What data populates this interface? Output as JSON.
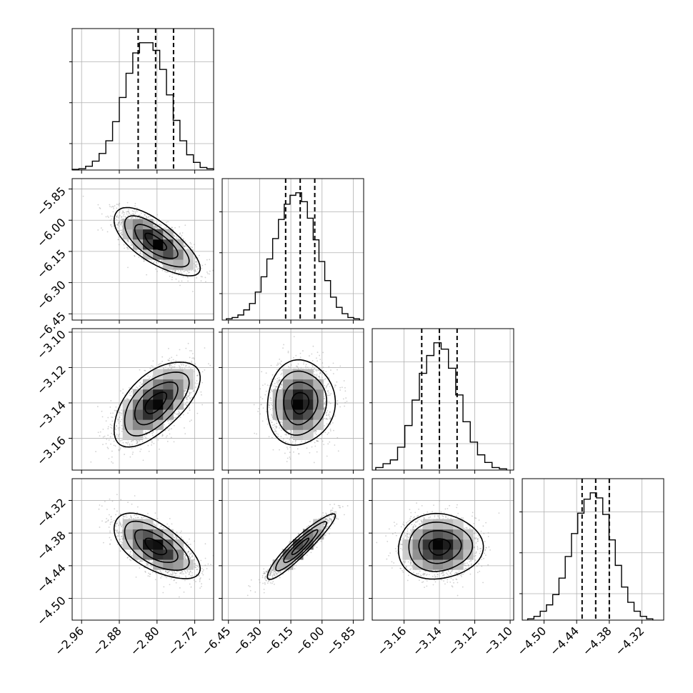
{
  "chart_data": {
    "type": "corner",
    "grid": true,
    "parameters": [
      {
        "range": [
          -2.98,
          -2.68
        ],
        "ticks": [
          -2.96,
          -2.88,
          -2.8,
          -2.72
        ],
        "tick_labels": [
          "−2.96",
          "−2.88",
          "−2.80",
          "−2.72"
        ],
        "quantiles": [
          -2.84,
          -2.803,
          -2.765
        ],
        "hist_peak": -2.8
      },
      {
        "range": [
          -6.48,
          -5.8
        ],
        "ticks": [
          -6.45,
          -6.3,
          -6.15,
          -6.0,
          -5.85
        ],
        "tick_labels": [
          "−6.45",
          "−6.30",
          "−6.15",
          "−6.00",
          "−5.85"
        ],
        "quantiles": [
          -6.175,
          -6.105,
          -6.035
        ],
        "hist_peak": -6.1
      },
      {
        "range": [
          -3.178,
          -3.098
        ],
        "ticks": [
          -3.16,
          -3.14,
          -3.12,
          -3.1
        ],
        "tick_labels": [
          "−3.16",
          "−3.14",
          "−3.12",
          "−3.10"
        ],
        "ticks_y": [
          -3.16,
          -3.14,
          -3.12,
          -3.1
        ],
        "tick_labels_y": [
          "−3.16",
          "−3.14",
          "−3.12",
          "−3.10"
        ],
        "quantiles": [
          -3.15,
          -3.14,
          -3.13
        ],
        "hist_peak": -3.14
      },
      {
        "range": [
          -4.54,
          -4.28
        ],
        "ticks": [
          -4.5,
          -4.44,
          -4.38,
          -4.32
        ],
        "tick_labels": [
          "−4.50",
          "−4.44",
          "−4.38",
          "−4.32"
        ],
        "quantiles": [
          -4.43,
          -4.405,
          -4.38
        ],
        "hist_peak": -4.4
      }
    ],
    "histograms": [
      {
        "counts": [
          0.005,
          0.01,
          0.03,
          0.07,
          0.13,
          0.23,
          0.38,
          0.57,
          0.76,
          0.92,
          1.0,
          1.0,
          0.94,
          0.79,
          0.59,
          0.39,
          0.23,
          0.12,
          0.06,
          0.02,
          0.01
        ],
        "bins_range": [
          -2.98,
          -2.68
        ]
      },
      {
        "counts": [
          0.01,
          0.02,
          0.04,
          0.08,
          0.13,
          0.22,
          0.34,
          0.48,
          0.64,
          0.79,
          0.91,
          0.98,
          1.0,
          0.93,
          0.8,
          0.63,
          0.46,
          0.31,
          0.18,
          0.1,
          0.05,
          0.02,
          0.01
        ],
        "bins_range": [
          -6.46,
          -5.82
        ]
      },
      {
        "counts": [
          0.02,
          0.05,
          0.08,
          0.18,
          0.35,
          0.55,
          0.76,
          0.9,
          1.0,
          0.95,
          0.8,
          0.59,
          0.38,
          0.22,
          0.12,
          0.06,
          0.02,
          0.01
        ],
        "bins_range": [
          -3.176,
          -3.102
        ]
      },
      {
        "counts": [
          0.01,
          0.03,
          0.07,
          0.12,
          0.2,
          0.33,
          0.5,
          0.68,
          0.84,
          0.95,
          1.0,
          0.96,
          0.83,
          0.63,
          0.43,
          0.26,
          0.14,
          0.07,
          0.03,
          0.01
        ],
        "bins_range": [
          -4.53,
          -4.3
        ]
      }
    ],
    "pairs": [
      {
        "x": 0,
        "y": 1,
        "mean": [
          -2.803,
          -6.105
        ],
        "sd": [
          0.038,
          0.068
        ],
        "corr": -0.72
      },
      {
        "x": 0,
        "y": 2,
        "mean": [
          -2.803,
          -3.14
        ],
        "sd": [
          0.038,
          0.01
        ],
        "corr": 0.6
      },
      {
        "x": 1,
        "y": 2,
        "mean": [
          -6.105,
          -3.14
        ],
        "sd": [
          0.068,
          0.01
        ],
        "corr": 0.05
      },
      {
        "x": 0,
        "y": 3,
        "mean": [
          -2.803,
          -4.405
        ],
        "sd": [
          0.038,
          0.025
        ],
        "corr": -0.62
      },
      {
        "x": 1,
        "y": 3,
        "mean": [
          -6.105,
          -4.405
        ],
        "sd": [
          0.068,
          0.025
        ],
        "corr": 0.93
      },
      {
        "x": 2,
        "y": 3,
        "mean": [
          -3.14,
          -4.405
        ],
        "sd": [
          0.01,
          0.025
        ],
        "corr": 0.03
      }
    ],
    "contour_levels_sigma": [
      0.5,
      1.0,
      1.5,
      2.0
    ],
    "colors": {
      "line": "#000000",
      "grid": "#b0b0b0",
      "points": "#9a9a9a"
    }
  }
}
